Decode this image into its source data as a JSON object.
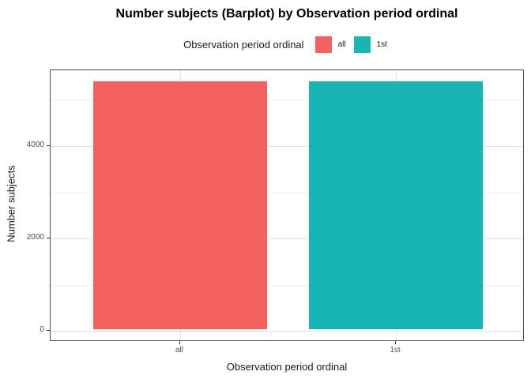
{
  "title": "Number subjects (Barplot) by Observation period ordinal",
  "legend": {
    "title": "Observation period ordinal",
    "items": [
      {
        "label": "all",
        "color": "#f3615e"
      },
      {
        "label": "1st",
        "color": "#19b5b5"
      }
    ]
  },
  "chart_data": {
    "type": "bar",
    "title": "Number subjects (Barplot) by Observation period ordinal",
    "categories": [
      "all",
      "1st"
    ],
    "values": [
      5370,
      5370
    ],
    "colors": [
      "#f3615e",
      "#19b5b5"
    ],
    "xlabel": "Observation period ordinal",
    "ylabel": "Number subjects",
    "y_ticks": [
      0,
      2000,
      4000
    ],
    "y_minor_gridlines": [
      1000,
      3000,
      5000
    ],
    "ylim": [
      -240,
      5640
    ],
    "legend_position": "top",
    "legend_title": "Observation period ordinal",
    "grid": true,
    "panel_border": true,
    "colors_meta": {
      "major_gridline": "#e2e2e2",
      "minor_gridline": "#f0f0f0",
      "panel_border": "#4d4d4d",
      "tick_text": "#4d4d4d"
    }
  }
}
